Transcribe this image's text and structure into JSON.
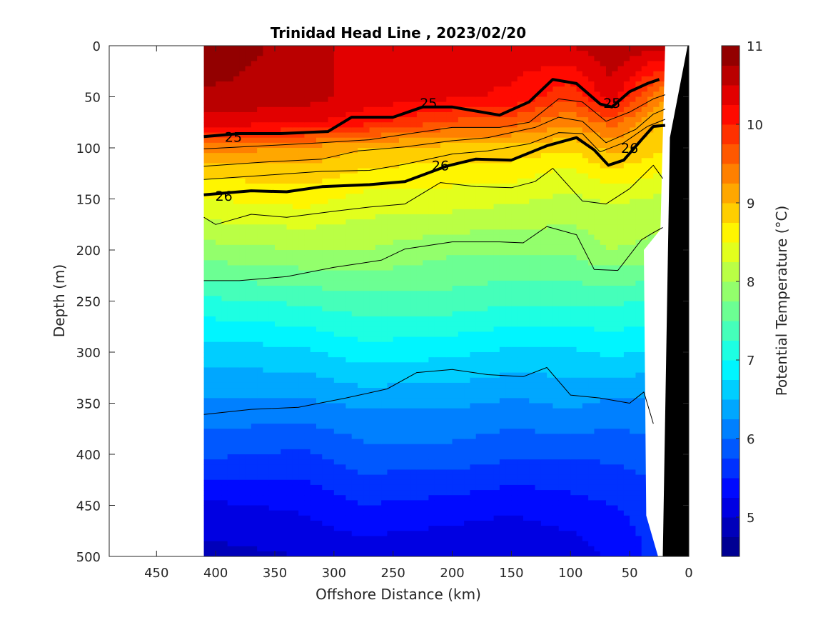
{
  "chart_data": {
    "type": "heatmap",
    "subtype": "filled-contour-section",
    "title": "Trinidad Head Line , 2023/02/20",
    "xlabel": "Offshore Distance (km)",
    "ylabel": "Depth (m)",
    "colorbar_label": "Potential Temperature (°C)",
    "xlim": [
      490,
      0
    ],
    "ylim": [
      0,
      500
    ],
    "x_reversed": true,
    "y_reversed": true,
    "x_ticks": [
      450,
      400,
      350,
      300,
      250,
      200,
      150,
      100,
      50,
      0
    ],
    "y_ticks": [
      0,
      50,
      100,
      150,
      200,
      250,
      300,
      350,
      400,
      450,
      500
    ],
    "colorbar": {
      "range": [
        4.5,
        11
      ],
      "ticks": [
        5,
        6,
        7,
        8,
        9,
        10,
        11
      ],
      "levels": [
        4.5,
        4.75,
        5,
        5.25,
        5.5,
        5.75,
        6,
        6.25,
        6.5,
        6.75,
        7,
        7.25,
        7.5,
        7.75,
        8,
        8.25,
        8.5,
        8.75,
        9,
        9.25,
        9.5,
        9.75,
        10,
        10.25,
        10.5,
        10.75,
        11
      ],
      "colormap": "jet"
    },
    "data_extent_km": [
      410,
      20
    ],
    "grid": false,
    "temperature_profiles": {
      "x_km": [
        410,
        325,
        275,
        200,
        150,
        100,
        65,
        25
      ],
      "depth_m": [
        0,
        50,
        75,
        100,
        125,
        150,
        200,
        250,
        300,
        350,
        400,
        450,
        500
      ],
      "temperature_c": [
        [
          11.0,
          10.7,
          10.4,
          9.4,
          8.8,
          8.5,
          7.9,
          7.2,
          6.6,
          6.2,
          5.8,
          5.2,
          4.9
        ],
        [
          10.6,
          10.6,
          10.3,
          9.2,
          8.9,
          8.6,
          8.0,
          7.3,
          6.7,
          6.2,
          5.7,
          5.3,
          5.0
        ],
        [
          10.4,
          10.4,
          10.1,
          9.0,
          8.7,
          8.4,
          8.0,
          7.4,
          6.9,
          6.3,
          5.9,
          5.5,
          5.1
        ],
        [
          10.3,
          10.3,
          9.7,
          8.9,
          8.6,
          8.4,
          7.8,
          7.4,
          6.8,
          6.3,
          5.9,
          5.4,
          5.0
        ],
        [
          10.4,
          10.2,
          9.6,
          8.9,
          8.6,
          8.3,
          7.8,
          7.3,
          6.7,
          6.2,
          5.8,
          5.3,
          5.0
        ],
        [
          10.5,
          9.8,
          9.3,
          8.8,
          8.4,
          8.2,
          7.8,
          7.3,
          6.7,
          6.3,
          5.8,
          5.4,
          5.1
        ],
        [
          10.7,
          10.4,
          9.6,
          9.1,
          8.7,
          8.3,
          8.0,
          7.3,
          6.8,
          6.2,
          5.8,
          5.5,
          5.3
        ],
        [
          10.6,
          9.3,
          9.0,
          8.8,
          8.5,
          8.2,
          7.9,
          7.2,
          6.7,
          6.2,
          5.9,
          5.6,
          5.6
        ]
      ]
    },
    "density_contours": [
      {
        "sigma": 25,
        "label": "25",
        "bold": true,
        "points": [
          [
            410,
            89
          ],
          [
            380,
            86
          ],
          [
            345,
            86
          ],
          [
            305,
            84
          ],
          [
            285,
            70
          ],
          [
            250,
            70
          ],
          [
            225,
            60
          ],
          [
            200,
            60
          ],
          [
            160,
            68
          ],
          [
            135,
            55
          ],
          [
            115,
            33
          ],
          [
            95,
            37
          ],
          [
            75,
            57
          ],
          [
            65,
            60
          ],
          [
            50,
            45
          ],
          [
            35,
            37
          ],
          [
            25,
            33
          ]
        ],
        "label_positions": [
          [
            385,
            89
          ],
          [
            220,
            56
          ],
          [
            65,
            56
          ]
        ]
      },
      {
        "sigma": 26,
        "label": "26",
        "bold": true,
        "points": [
          [
            410,
            146
          ],
          [
            370,
            142
          ],
          [
            340,
            143
          ],
          [
            310,
            138
          ],
          [
            270,
            136
          ],
          [
            240,
            133
          ],
          [
            205,
            118
          ],
          [
            180,
            111
          ],
          [
            150,
            112
          ],
          [
            120,
            98
          ],
          [
            95,
            90
          ],
          [
            80,
            102
          ],
          [
            68,
            117
          ],
          [
            55,
            112
          ],
          [
            40,
            92
          ],
          [
            30,
            79
          ],
          [
            20,
            78
          ]
        ],
        "label_positions": [
          [
            393,
            147
          ],
          [
            210,
            117
          ],
          [
            50,
            100
          ]
        ]
      },
      {
        "sigma": null,
        "label": "",
        "bold": false,
        "points": [
          [
            410,
            101
          ],
          [
            360,
            98
          ],
          [
            310,
            95
          ],
          [
            270,
            92
          ],
          [
            230,
            85
          ],
          [
            200,
            80
          ],
          [
            160,
            80
          ],
          [
            135,
            75
          ],
          [
            110,
            52
          ],
          [
            90,
            55
          ],
          [
            70,
            74
          ],
          [
            50,
            65
          ],
          [
            30,
            52
          ],
          [
            20,
            48
          ]
        ]
      },
      {
        "sigma": null,
        "label": "",
        "bold": false,
        "points": [
          [
            410,
            118
          ],
          [
            360,
            114
          ],
          [
            310,
            111
          ],
          [
            280,
            103
          ],
          [
            240,
            99
          ],
          [
            200,
            93
          ],
          [
            170,
            90
          ],
          [
            130,
            80
          ],
          [
            110,
            70
          ],
          [
            90,
            74
          ],
          [
            70,
            95
          ],
          [
            45,
            82
          ],
          [
            30,
            67
          ],
          [
            20,
            62
          ]
        ]
      },
      {
        "sigma": null,
        "label": "",
        "bold": false,
        "points": [
          [
            410,
            131
          ],
          [
            360,
            127
          ],
          [
            310,
            123
          ],
          [
            270,
            122
          ],
          [
            240,
            116
          ],
          [
            200,
            106
          ],
          [
            170,
            103
          ],
          [
            135,
            96
          ],
          [
            110,
            85
          ],
          [
            90,
            86
          ],
          [
            75,
            104
          ],
          [
            55,
            95
          ],
          [
            35,
            79
          ],
          [
            20,
            72
          ]
        ]
      },
      {
        "sigma": null,
        "label": "",
        "bold": false,
        "points": [
          [
            410,
            168
          ],
          [
            400,
            175
          ],
          [
            370,
            165
          ],
          [
            340,
            168
          ],
          [
            300,
            162
          ],
          [
            270,
            158
          ],
          [
            240,
            155
          ],
          [
            210,
            134
          ],
          [
            180,
            138
          ],
          [
            150,
            139
          ],
          [
            130,
            133
          ],
          [
            115,
            120
          ],
          [
            90,
            152
          ],
          [
            70,
            155
          ],
          [
            50,
            140
          ],
          [
            30,
            117
          ],
          [
            22,
            130
          ]
        ]
      },
      {
        "sigma": null,
        "label": "",
        "bold": false,
        "points": [
          [
            410,
            230
          ],
          [
            380,
            230
          ],
          [
            340,
            226
          ],
          [
            300,
            217
          ],
          [
            260,
            210
          ],
          [
            240,
            199
          ],
          [
            200,
            192
          ],
          [
            160,
            192
          ],
          [
            140,
            193
          ],
          [
            120,
            177
          ],
          [
            95,
            185
          ],
          [
            80,
            219
          ],
          [
            60,
            220
          ],
          [
            40,
            190
          ],
          [
            30,
            183
          ],
          [
            22,
            178
          ]
        ]
      },
      {
        "sigma": null,
        "label": "",
        "bold": false,
        "points": [
          [
            410,
            361
          ],
          [
            370,
            356
          ],
          [
            330,
            354
          ],
          [
            290,
            345
          ],
          [
            255,
            336
          ],
          [
            230,
            320
          ],
          [
            200,
            317
          ],
          [
            170,
            322
          ],
          [
            140,
            324
          ],
          [
            120,
            315
          ],
          [
            100,
            342
          ],
          [
            75,
            345
          ],
          [
            50,
            350
          ],
          [
            38,
            339
          ],
          [
            30,
            370
          ]
        ]
      }
    ]
  }
}
